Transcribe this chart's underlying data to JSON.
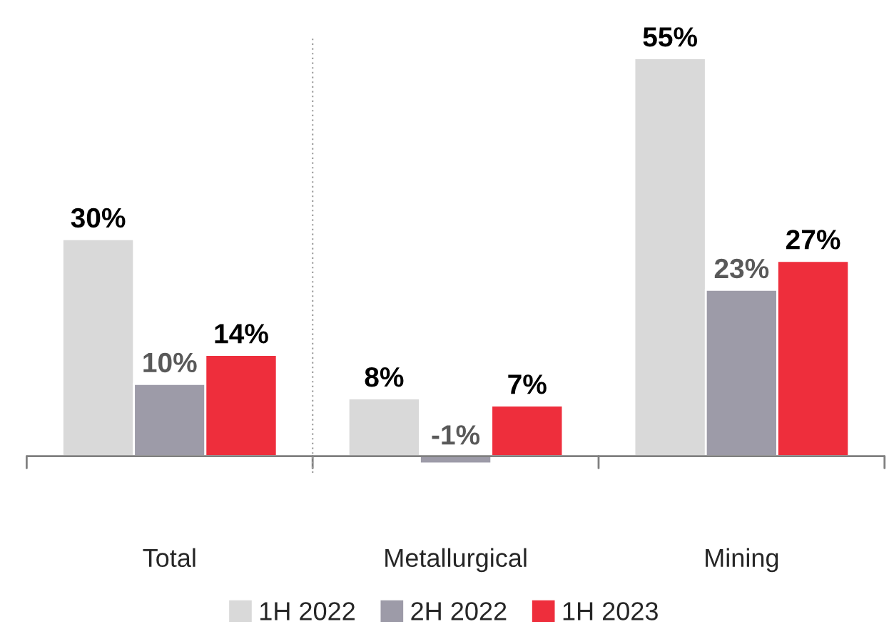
{
  "chart_data": {
    "type": "bar",
    "categories": [
      "Total",
      "Metallurgical",
      "Mining"
    ],
    "series": [
      {
        "name": "1H 2022",
        "color": "#d9d9d9",
        "values": [
          30,
          8,
          55
        ],
        "value_labels": [
          "30%",
          "8%",
          "55%"
        ]
      },
      {
        "name": "2H 2022",
        "color": "#9d9ba8",
        "values": [
          10,
          -1,
          23
        ],
        "value_labels": [
          "10%",
          "-1%",
          "23%"
        ]
      },
      {
        "name": "1H 2023",
        "color": "#ee2e3c",
        "values": [
          14,
          7,
          27
        ],
        "value_labels": [
          "14%",
          "7%",
          "27%"
        ]
      }
    ],
    "legend": "bottom",
    "grid": false
  }
}
